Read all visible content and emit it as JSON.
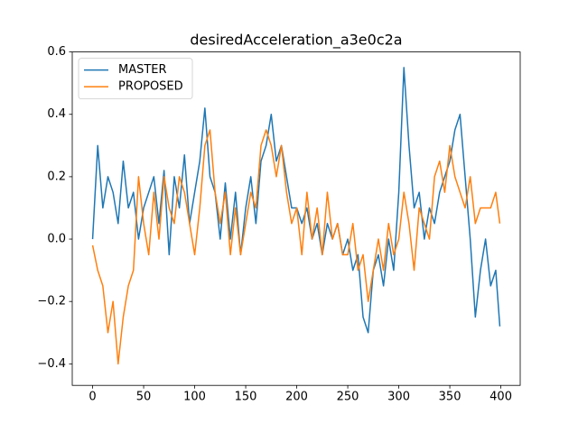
{
  "chart_data": {
    "type": "line",
    "title": "desiredAcceleration_a3e0c2a",
    "x": [
      0,
      5,
      10,
      15,
      20,
      25,
      30,
      35,
      40,
      45,
      50,
      55,
      60,
      65,
      70,
      75,
      80,
      85,
      90,
      95,
      100,
      105,
      110,
      115,
      120,
      125,
      130,
      135,
      140,
      145,
      150,
      155,
      160,
      165,
      170,
      175,
      180,
      185,
      190,
      195,
      200,
      205,
      210,
      215,
      220,
      225,
      230,
      235,
      240,
      245,
      250,
      255,
      260,
      265,
      270,
      275,
      280,
      285,
      290,
      295,
      300,
      305,
      310,
      315,
      320,
      325,
      330,
      335,
      340,
      345,
      350,
      355,
      360,
      365,
      370,
      375,
      380,
      385,
      390,
      395,
      399
    ],
    "series": [
      {
        "name": "MASTER",
        "color": "#1f77b4",
        "values": [
          0,
          0.3,
          0.1,
          0.2,
          0.15,
          0.05,
          0.25,
          0.1,
          0.15,
          0.0,
          0.1,
          0.15,
          0.2,
          0.05,
          0.22,
          -0.05,
          0.2,
          0.1,
          0.27,
          0.05,
          0.15,
          0.25,
          0.42,
          0.2,
          0.15,
          0.0,
          0.18,
          0.0,
          0.15,
          -0.05,
          0.1,
          0.2,
          0.05,
          0.25,
          0.3,
          0.4,
          0.25,
          0.3,
          0.2,
          0.1,
          0.1,
          0.05,
          0.1,
          0.0,
          0.05,
          -0.05,
          0.05,
          0.0,
          0.05,
          -0.05,
          0.0,
          -0.1,
          -0.05,
          -0.25,
          -0.3,
          -0.1,
          -0.05,
          -0.15,
          0.0,
          -0.1,
          0.15,
          0.55,
          0.3,
          0.1,
          0.15,
          0.0,
          0.1,
          0.05,
          0.15,
          0.2,
          0.25,
          0.35,
          0.4,
          0.2,
          0.0,
          -0.25,
          -0.1,
          0.0,
          -0.15,
          -0.1,
          -0.28
        ]
      },
      {
        "name": "PROPOSED",
        "color": "#ff7f0e",
        "values": [
          -0.02,
          -0.1,
          -0.15,
          -0.3,
          -0.2,
          -0.4,
          -0.25,
          -0.15,
          -0.1,
          0.2,
          0.05,
          -0.05,
          0.15,
          0.0,
          0.2,
          0.1,
          0.05,
          0.2,
          0.15,
          0.05,
          -0.05,
          0.1,
          0.3,
          0.35,
          0.15,
          0.05,
          0.15,
          -0.05,
          0.1,
          -0.05,
          0.05,
          0.15,
          0.1,
          0.3,
          0.35,
          0.3,
          0.2,
          0.3,
          0.15,
          0.05,
          0.1,
          -0.05,
          0.15,
          0.0,
          0.1,
          -0.05,
          0.15,
          0.0,
          0.05,
          -0.05,
          -0.05,
          0.05,
          -0.1,
          -0.05,
          -0.2,
          -0.1,
          0.0,
          -0.1,
          0.05,
          -0.05,
          0.0,
          0.15,
          0.05,
          -0.1,
          0.1,
          0.05,
          0.0,
          0.2,
          0.25,
          0.15,
          0.3,
          0.2,
          0.15,
          0.1,
          0.2,
          0.05,
          0.1,
          0.1,
          0.1,
          0.15,
          0.05
        ]
      }
    ],
    "xlim": [
      -19.95,
      418.95
    ],
    "xticks": [
      0,
      50,
      100,
      150,
      200,
      250,
      300,
      350,
      400
    ],
    "ylim": [
      -0.469,
      0.6
    ],
    "yticks": [
      {
        "value": -0.4,
        "label": "−0.4"
      },
      {
        "value": -0.2,
        "label": "−0.2"
      },
      {
        "value": 0,
        "label": "0.0"
      },
      0.2,
      0.4,
      0.6
    ],
    "legend": "upper left"
  }
}
